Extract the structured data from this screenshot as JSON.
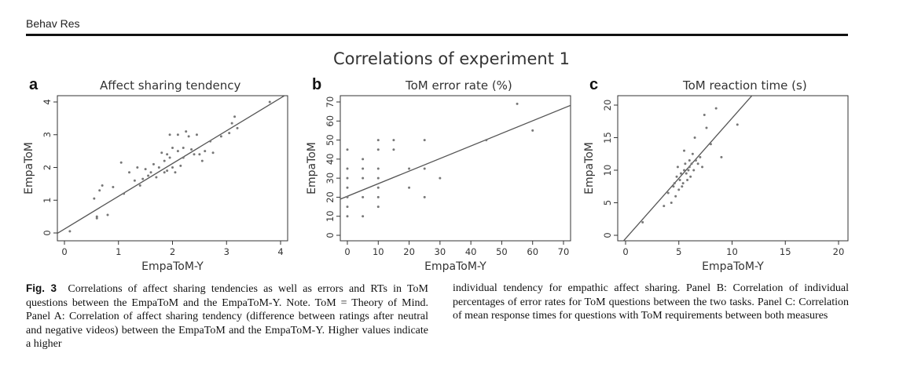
{
  "header": {
    "running_head": "Behav Res"
  },
  "figure": {
    "title": "Correlations of experiment 1",
    "caption": {
      "label": "Fig. 3",
      "left_text": "Correlations of affect sharing tendencies as well as errors and RTs in ToM questions between the EmpaToM and the EmpaToM-Y. Note. ToM = Theory of Mind. Panel A: Correlation of affect sharing tendency (difference between ratings after neutral and negative videos) between the EmpaToM and the EmpaToM-Y. Higher values indicate a higher",
      "right_text": "individual tendency for empathic affect sharing. Panel B: Correlation of individual percentages of error rates for ToM questions between the two tasks. Panel C: Correlation of mean response times for questions with ToM requirements between both measures"
    }
  },
  "chart_data": [
    {
      "type": "scatter",
      "panel": "a",
      "title": "Affect sharing tendency",
      "xlabel": "EmpaToM-Y",
      "ylabel": "EmpaToM",
      "xlim": [
        0,
        4
      ],
      "ylim": [
        0,
        4
      ],
      "xticks": [
        0,
        1,
        2,
        3,
        4
      ],
      "yticks": [
        0,
        1,
        2,
        3,
        4
      ],
      "x": [
        0.1,
        0.55,
        0.6,
        0.6,
        0.65,
        0.7,
        0.8,
        0.9,
        1.05,
        1.1,
        1.2,
        1.3,
        1.35,
        1.4,
        1.45,
        1.5,
        1.55,
        1.6,
        1.65,
        1.7,
        1.75,
        1.8,
        1.85,
        1.85,
        1.9,
        1.9,
        1.95,
        1.95,
        2.0,
        2.0,
        2.05,
        2.1,
        2.1,
        2.15,
        2.2,
        2.2,
        2.25,
        2.3,
        2.35,
        2.4,
        2.45,
        2.5,
        2.55,
        2.6,
        2.7,
        2.75,
        2.9,
        3.05,
        3.1,
        3.15,
        3.2,
        3.8
      ],
      "y": [
        0.05,
        1.05,
        0.45,
        0.5,
        1.3,
        1.45,
        0.55,
        1.4,
        2.15,
        1.2,
        1.85,
        1.6,
        2.0,
        1.45,
        1.65,
        1.95,
        1.75,
        1.85,
        2.1,
        1.7,
        2.0,
        2.45,
        1.85,
        2.2,
        2.4,
        1.9,
        2.3,
        3.0,
        2.0,
        2.6,
        1.85,
        2.5,
        3.0,
        2.05,
        2.6,
        2.3,
        3.1,
        2.95,
        2.55,
        2.4,
        3.0,
        2.4,
        2.2,
        2.5,
        2.8,
        2.45,
        2.95,
        3.05,
        3.35,
        3.55,
        3.2,
        4.0
      ],
      "fit": {
        "intercept": 0.12,
        "slope": 1.0
      }
    },
    {
      "type": "scatter",
      "panel": "b",
      "title": "ToM error rate (%)",
      "xlabel": "EmpaToM-Y",
      "ylabel": "EmpaToM",
      "xlim": [
        0,
        70
      ],
      "ylim": [
        0,
        70
      ],
      "xticks": [
        0,
        10,
        20,
        30,
        40,
        50,
        60,
        70
      ],
      "yticks": [
        0,
        10,
        20,
        30,
        40,
        50,
        60,
        70
      ],
      "x": [
        0,
        0,
        0,
        0,
        0,
        0,
        0,
        5,
        5,
        5,
        5,
        5,
        10,
        10,
        10,
        10,
        10,
        10,
        10,
        15,
        15,
        20,
        20,
        25,
        25,
        25,
        30,
        45,
        55,
        60
      ],
      "y": [
        45,
        35,
        30,
        25,
        20,
        15,
        10,
        40,
        35,
        30,
        20,
        10,
        50,
        45,
        35,
        30,
        25,
        20,
        15,
        50,
        45,
        35,
        25,
        50,
        35,
        20,
        30,
        50,
        69,
        55
      ],
      "fit": {
        "intercept": 20.5,
        "slope": 0.66
      }
    },
    {
      "type": "scatter",
      "panel": "c",
      "title": "ToM reaction time (s)",
      "xlabel": "EmpaToM-Y",
      "ylabel": "EmpaToM",
      "xlim": [
        0,
        20
      ],
      "ylim": [
        0,
        20
      ],
      "xticks": [
        0,
        5,
        10,
        15,
        20
      ],
      "yticks": [
        0,
        5,
        10,
        15,
        20
      ],
      "x": [
        1.6,
        3.6,
        4.0,
        4.3,
        4.5,
        4.6,
        4.7,
        4.8,
        4.9,
        5.0,
        5.1,
        5.2,
        5.3,
        5.4,
        5.5,
        5.5,
        5.6,
        5.7,
        5.8,
        5.9,
        6.0,
        6.0,
        6.1,
        6.2,
        6.3,
        6.4,
        6.5,
        6.6,
        6.8,
        7.0,
        7.2,
        7.4,
        7.6,
        8.0,
        8.5,
        9.0,
        10.5
      ],
      "y": [
        2.0,
        4.5,
        6.5,
        5.0,
        7.5,
        8.0,
        6.0,
        9.0,
        10.5,
        7.0,
        8.5,
        9.5,
        7.5,
        8.0,
        10.0,
        13.0,
        11.0,
        9.5,
        8.5,
        10.0,
        11.5,
        10.5,
        9.0,
        11.0,
        12.5,
        10.0,
        15.0,
        11.5,
        11.0,
        12.0,
        10.5,
        18.5,
        16.5,
        14.0,
        19.5,
        12.0,
        17.0
      ],
      "fit": {
        "intercept": -0.5,
        "slope": 1.85
      }
    }
  ]
}
